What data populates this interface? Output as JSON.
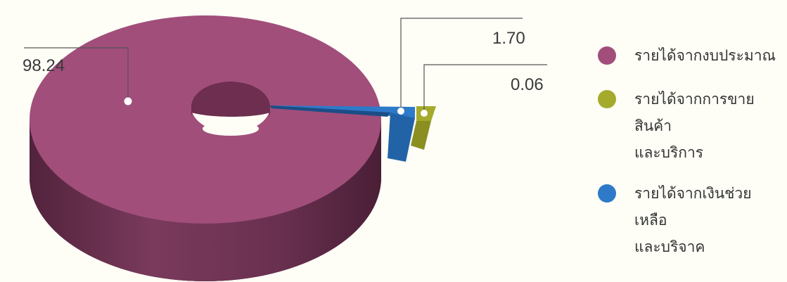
{
  "chart_data": {
    "type": "pie",
    "title": "",
    "legend_position": "right",
    "values": [
      98.24,
      1.7,
      0.06
    ],
    "value_labels": [
      "98.24",
      "1.70",
      "0.06"
    ],
    "slices": [
      {
        "legend_lines": [
          "รายได้จากงบประมาณ"
        ],
        "color": "#a14e7b"
      },
      {
        "legend_lines": [
          "รายได้จากเงินช่วยเหลือ",
          "และบริจาค"
        ],
        "color": "#2e7ac9"
      },
      {
        "legend_lines": [
          "รายได้จากการขายสินค้า",
          "และบริการ"
        ],
        "color": "#a5aa2d"
      }
    ]
  }
}
